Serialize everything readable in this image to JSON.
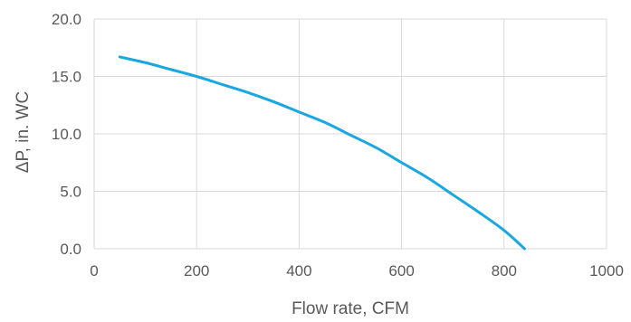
{
  "chart_data": {
    "type": "line",
    "title": "",
    "xlabel": "Flow rate, CFM",
    "ylabel": "ΔP, in. WC",
    "xlim": [
      0,
      1000
    ],
    "ylim": [
      0,
      20
    ],
    "x_ticks": [
      "0",
      "200",
      "400",
      "600",
      "800",
      "1000"
    ],
    "y_ticks": [
      "0.0",
      "5.0",
      "10.0",
      "15.0",
      "20.0"
    ],
    "grid": true,
    "legend": "none",
    "series": [
      {
        "color": "#1aa7e0",
        "x": [
          50,
          100,
          150,
          200,
          250,
          300,
          350,
          400,
          450,
          500,
          550,
          600,
          650,
          700,
          750,
          800,
          840
        ],
        "y": [
          16.7,
          16.2,
          15.6,
          15.0,
          14.3,
          13.6,
          12.8,
          11.9,
          11.0,
          9.9,
          8.8,
          7.5,
          6.2,
          4.7,
          3.2,
          1.6,
          0.0
        ]
      }
    ]
  }
}
